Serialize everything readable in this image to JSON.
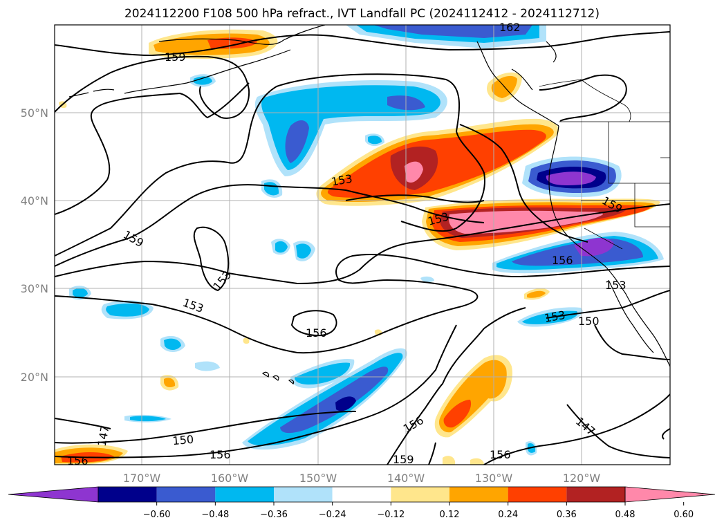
{
  "title": "2024112200 F108 500 hPa refract., IVT Landfall PC (2024112412 - 2024112712)",
  "map": {
    "lon_labels": [
      "170°W",
      "160°W",
      "150°W",
      "140°W",
      "130°W",
      "120°W"
    ],
    "lat_labels": [
      "50°N",
      "40°N",
      "30°N",
      "20°N"
    ],
    "contour_labels": [
      "162",
      "159",
      "159",
      "153",
      "153",
      "153",
      "153",
      "153",
      "156",
      "156",
      "153",
      "150",
      "147",
      "150",
      "156",
      "156",
      "159",
      "147",
      "156"
    ]
  },
  "colorbar": {
    "ticks": [
      "−0.60",
      "−0.48",
      "−0.36",
      "−0.24",
      "−0.12",
      "0.12",
      "0.24",
      "0.36",
      "0.48",
      "0.60"
    ],
    "colors": [
      "#8e35d0",
      "#00008b",
      "#3a5bd0",
      "#00b8f0",
      "#b0e2fa",
      "#ffffff",
      "#ffe68c",
      "#ffa500",
      "#ff4000",
      "#b22222",
      "#ff88aa"
    ],
    "extend": "both"
  }
}
